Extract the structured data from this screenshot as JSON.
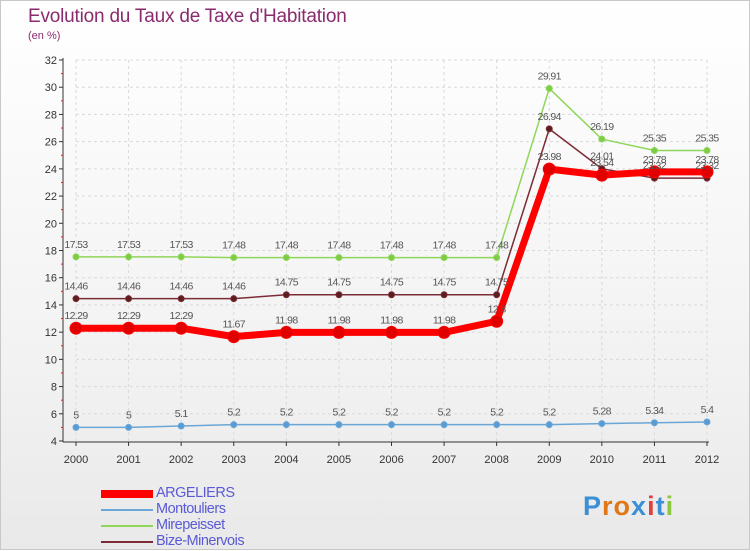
{
  "title": "Evolution du Taux de Taxe d'Habitation",
  "subtitle": "(en %)",
  "logo": {
    "text": "Proxiti",
    "colors": [
      "#3a8fd6",
      "#e0781a",
      "#e0781a",
      "#3a8fd6",
      "#e04040",
      "#3a8fd6",
      "#8dc63f"
    ]
  },
  "chart_data": {
    "type": "line",
    "title": "Evolution du Taux de Taxe d'Habitation",
    "ylabel": "(en %)",
    "xlabel": "",
    "categories": [
      "2000",
      "2001",
      "2002",
      "2003",
      "2004",
      "2005",
      "2006",
      "2007",
      "2008",
      "2009",
      "2010",
      "2011",
      "2012"
    ],
    "ylim": [
      4,
      32
    ],
    "yticks": [
      "4",
      "6",
      "8",
      "10",
      "12",
      "14",
      "16",
      "18",
      "20",
      "22",
      "24",
      "26",
      "28",
      "30",
      "32"
    ],
    "series": [
      {
        "name": "Mirepeisset",
        "color": "#8fd65a",
        "values": [
          17.53,
          17.53,
          17.53,
          17.48,
          17.48,
          17.48,
          17.48,
          17.48,
          17.48,
          29.91,
          26.19,
          25.35,
          25.35
        ],
        "labels": [
          "17.53",
          "17.53",
          "17.53",
          "17.48",
          "17.48",
          "17.48",
          "17.48",
          "17.48",
          "17.48",
          "29.91",
          "26.19",
          "25.35",
          "25.35"
        ]
      },
      {
        "name": "Bize-Minervois",
        "color": "#7b2c36",
        "values": [
          14.46,
          14.46,
          14.46,
          14.46,
          14.75,
          14.75,
          14.75,
          14.75,
          14.75,
          26.94,
          24.01,
          23.32,
          23.32
        ],
        "labels": [
          "14.46",
          "14.46",
          "14.46",
          "14.46",
          "14.75",
          "14.75",
          "14.75",
          "14.75",
          "14.75",
          "26.94",
          "24.01",
          "23.32",
          "23.32"
        ]
      },
      {
        "name": "ARGELIERS",
        "color": "#ff0000",
        "values": [
          12.29,
          12.29,
          12.29,
          11.67,
          11.98,
          11.98,
          11.98,
          11.98,
          12.8,
          23.98,
          23.54,
          23.78,
          23.78
        ],
        "labels": [
          "12.29",
          "12.29",
          "12.29",
          "11.67",
          "11.98",
          "11.98",
          "11.98",
          "11.98",
          "12.8",
          "23.98",
          "23.54",
          "23.78",
          "23.78"
        ]
      },
      {
        "name": "Montouliers",
        "color": "#6aa6d6",
        "values": [
          5,
          5,
          5.1,
          5.2,
          5.2,
          5.2,
          5.2,
          5.2,
          5.2,
          5.2,
          5.28,
          5.34,
          5.4
        ],
        "labels": [
          "5",
          "5",
          "5.1",
          "5.2",
          "5.2",
          "5.2",
          "5.2",
          "5.2",
          "5.2",
          "5.2",
          "5.28",
          "5.34",
          "5.4"
        ]
      }
    ],
    "legend": {
      "position": "bottom-left",
      "order": [
        "ARGELIERS",
        "Montouliers",
        "Mirepeisset",
        "Bize-Minervois"
      ],
      "text_color": "#5a5ad6"
    }
  }
}
